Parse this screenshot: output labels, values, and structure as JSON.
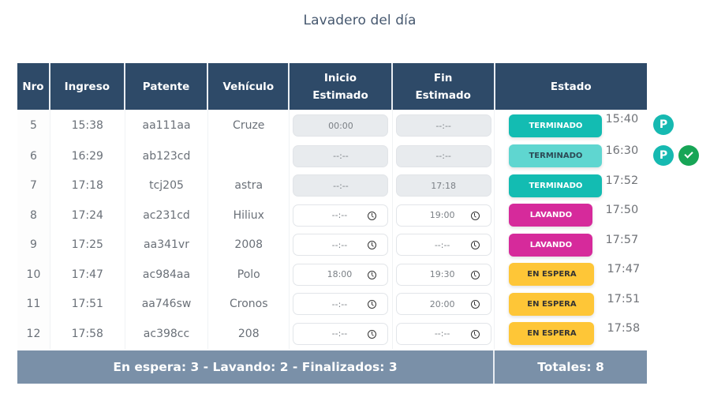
{
  "page": {
    "title": "Lavadero del día"
  },
  "table": {
    "headers": {
      "nro": "Nro",
      "ingreso": "Ingreso",
      "patente": "Patente",
      "vehiculo": "Vehículo",
      "inicio_line1": "Inicio",
      "inicio_line2": "Estimado",
      "fin_line1": "Fin",
      "fin_line2": "Estimado",
      "estado": "Estado"
    },
    "rows": [
      {
        "nro": "5",
        "ingreso": "15:38",
        "patente": "aa111aa",
        "vehiculo": "Cruze",
        "inicio": "00:00",
        "fin": "--:--",
        "inputs_enabled": false,
        "estado": "TERMINADO",
        "estado_style": "term",
        "hora_estado": "15:40",
        "actions": [
          "p-icon"
        ]
      },
      {
        "nro": "6",
        "ingreso": "16:29",
        "patente": "ab123cd",
        "vehiculo": "",
        "inicio": "--:--",
        "fin": "--:--",
        "inputs_enabled": false,
        "estado": "TERMINADO",
        "estado_style": "term-light",
        "hora_estado": "16:30",
        "actions": [
          "p-icon",
          "check-icon"
        ]
      },
      {
        "nro": "7",
        "ingreso": "17:18",
        "patente": "tcj205",
        "vehiculo": "astra",
        "inicio": "--:--",
        "fin": "17:18",
        "inputs_enabled": false,
        "estado": "TERMINADO",
        "estado_style": "term",
        "hora_estado": "17:52",
        "actions": []
      },
      {
        "nro": "8",
        "ingreso": "17:24",
        "patente": "ac231cd",
        "vehiculo": "Hiliux",
        "inicio": "--:--",
        "fin": "19:00",
        "inputs_enabled": true,
        "estado": "LAVANDO",
        "estado_style": "lav",
        "hora_estado": "17:50",
        "actions": []
      },
      {
        "nro": "9",
        "ingreso": "17:25",
        "patente": "aa341vr",
        "vehiculo": "2008",
        "inicio": "--:--",
        "fin": "--:--",
        "inputs_enabled": true,
        "estado": "LAVANDO",
        "estado_style": "lav",
        "hora_estado": "17:57",
        "actions": []
      },
      {
        "nro": "10",
        "ingreso": "17:47",
        "patente": "ac984aa",
        "vehiculo": "Polo",
        "inicio": "18:00",
        "fin": "19:30",
        "inputs_enabled": true,
        "estado": "EN ESPERA",
        "estado_style": "esp",
        "hora_estado": "17:47",
        "actions": []
      },
      {
        "nro": "11",
        "ingreso": "17:51",
        "patente": "aa746sw",
        "vehiculo": "Cronos",
        "inicio": "--:--",
        "fin": "20:00",
        "inputs_enabled": true,
        "estado": "EN ESPERA",
        "estado_style": "esp",
        "hora_estado": "17:51",
        "actions": []
      },
      {
        "nro": "12",
        "ingreso": "17:58",
        "patente": "ac398cc",
        "vehiculo": "208",
        "inicio": "--:--",
        "fin": "--:--",
        "inputs_enabled": true,
        "estado": "EN ESPERA",
        "estado_style": "esp",
        "hora_estado": "17:58",
        "actions": []
      }
    ],
    "footer": {
      "summary": "En espera: 3 - Lavando: 2 - Finalizados: 3",
      "totals": "Totales: 8"
    }
  },
  "action_labels": {
    "p-icon": "P"
  },
  "colors": {
    "header_bg": "#2e4a68",
    "footer_bg": "#7a90a8",
    "terminado": "#13bcb2",
    "terminado_light": "#5fd6d0",
    "lavando": "#d62a9b",
    "en_espera": "#fec637",
    "action_p": "#16b9b1",
    "action_check": "#17a556"
  }
}
